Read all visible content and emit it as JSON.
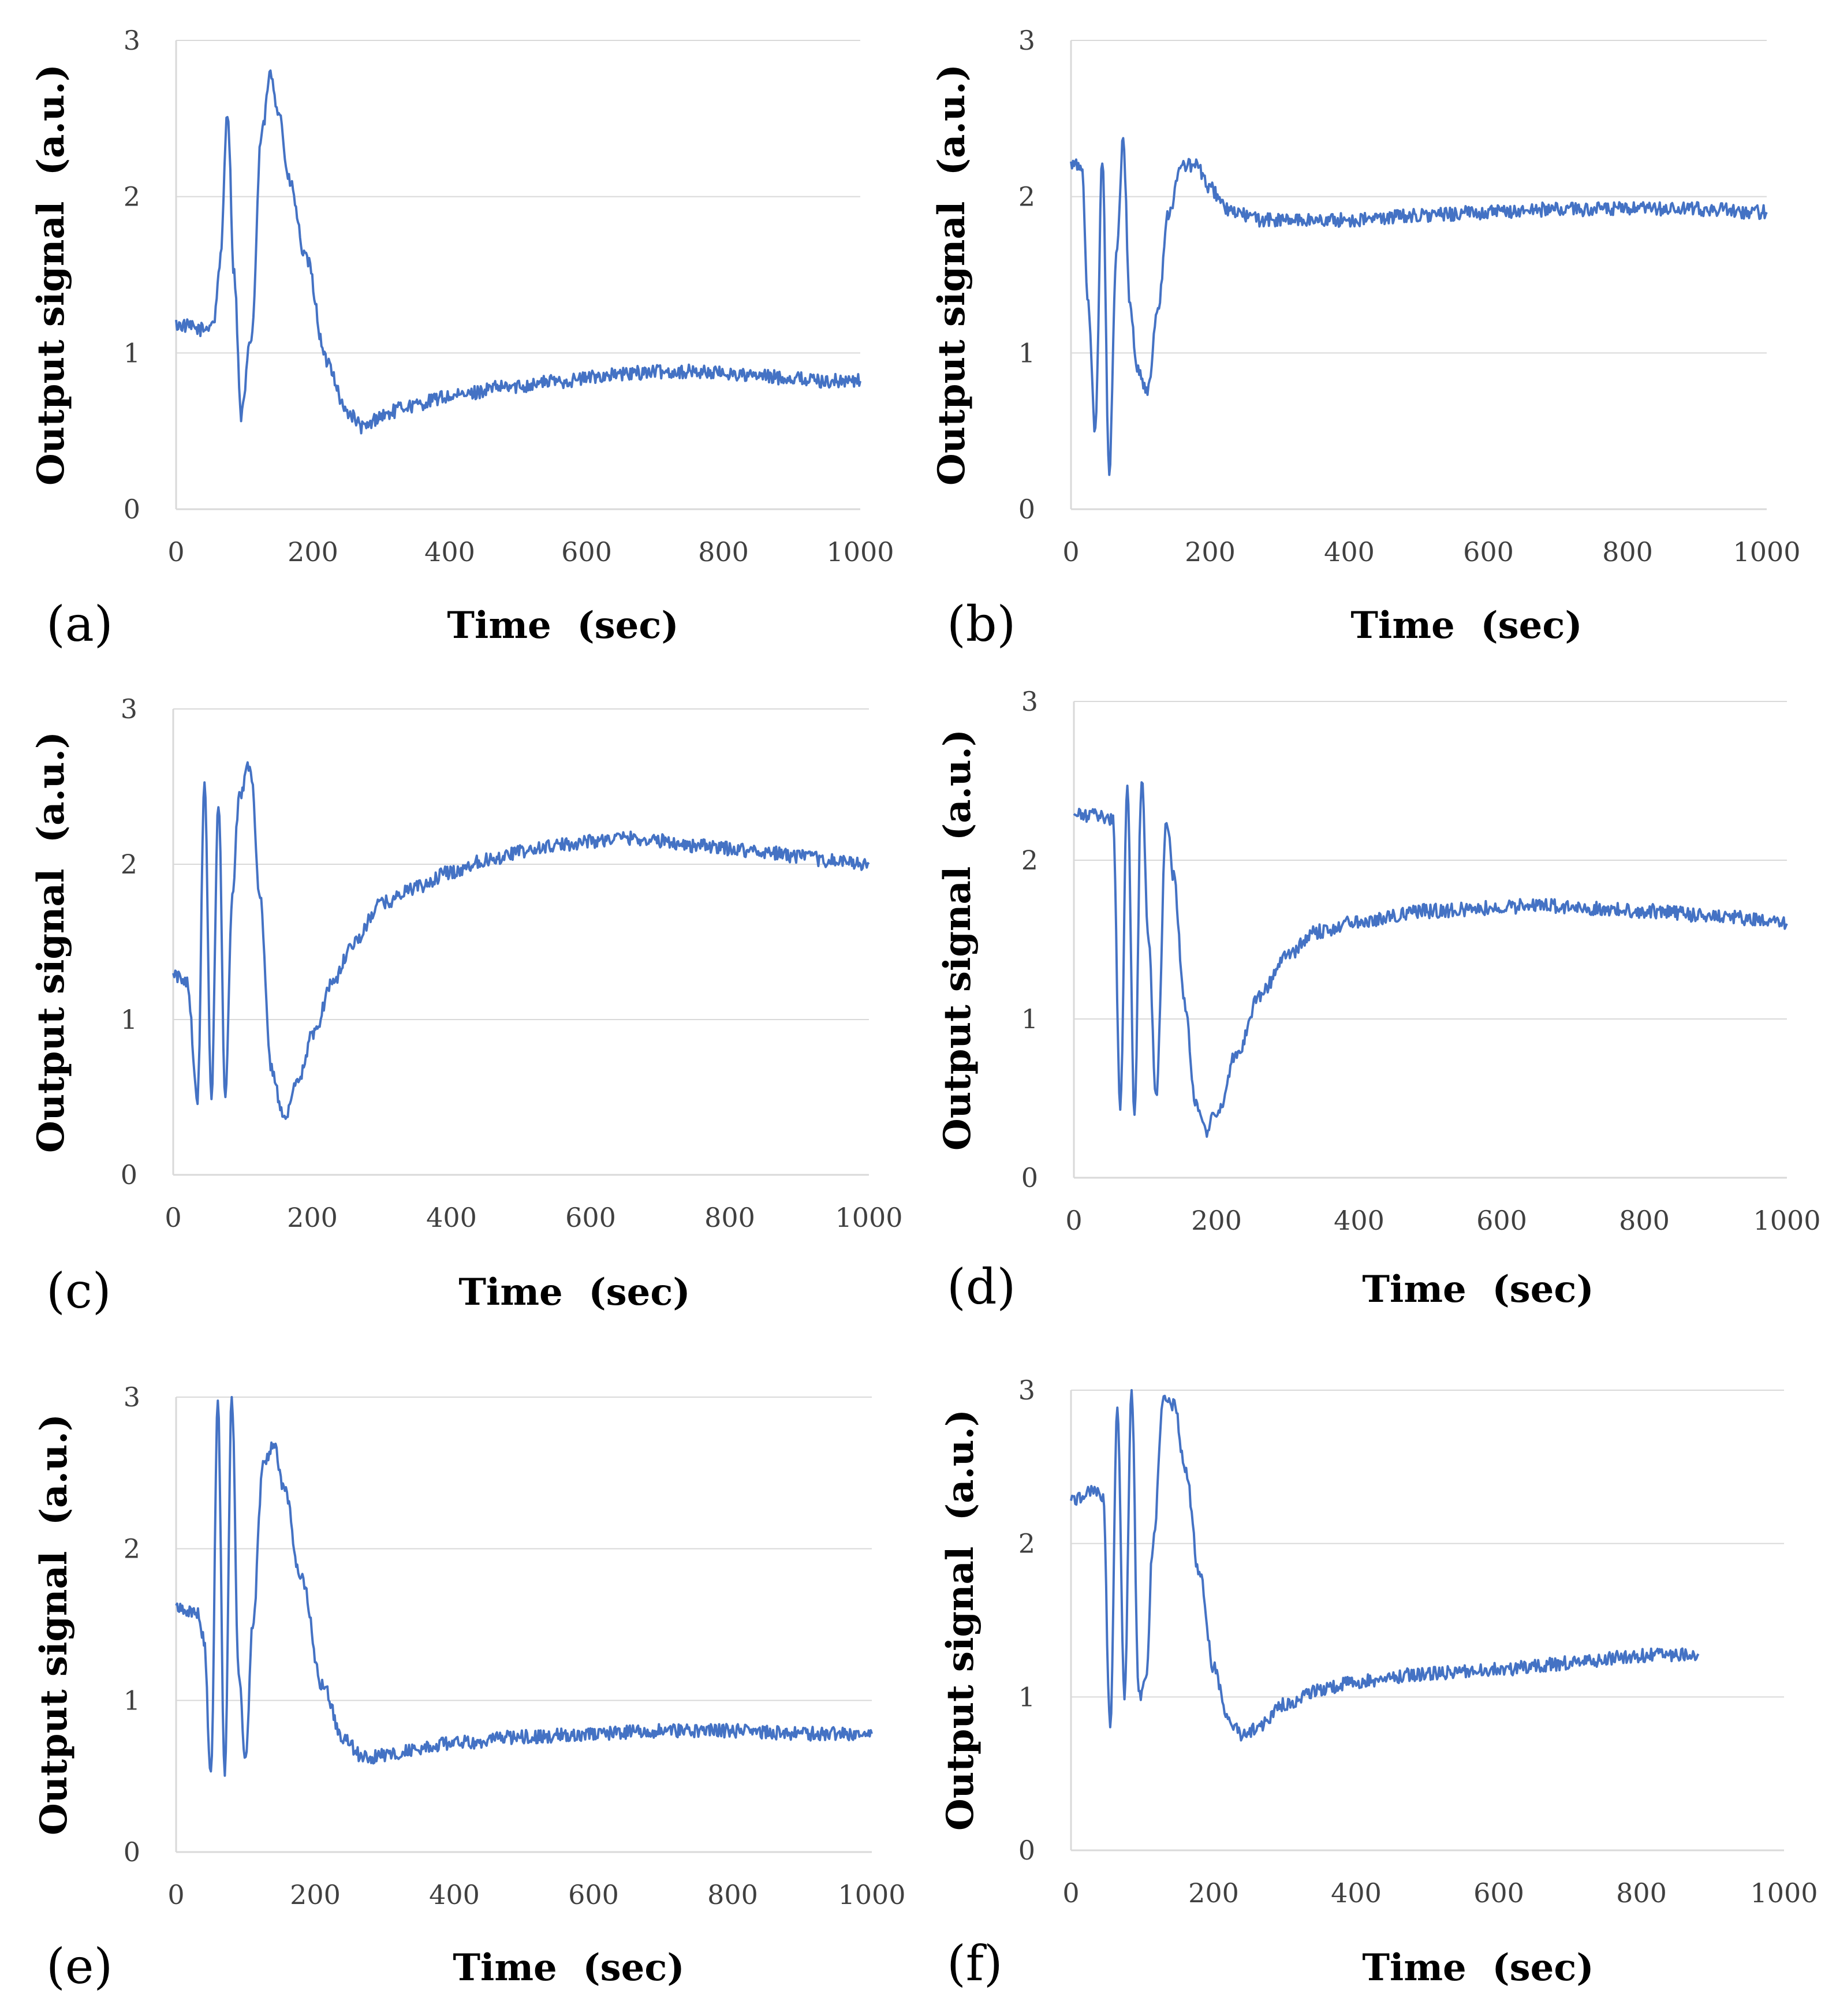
{
  "chart_data": [
    {
      "type": "line",
      "panel_label": "(a)",
      "xlabel": "Time  (sec)",
      "ylabel": "Output signal  (a.u.)",
      "xlim": [
        0,
        1000
      ],
      "ylim": [
        0,
        3
      ],
      "xticks": [
        "0",
        "200",
        "400",
        "600",
        "800",
        "1000"
      ],
      "yticks": [
        "0",
        "1",
        "2",
        "3"
      ],
      "grid": "horizontal",
      "series": [
        {
          "color": "#4472c4",
          "x": [
            0,
            40,
            55,
            65,
            75,
            85,
            95,
            110,
            125,
            138,
            150,
            165,
            190,
            220,
            250,
            275,
            300,
            340,
            400,
            480,
            560,
            640,
            700,
            760,
            800,
            850,
            900,
            950,
            1000
          ],
          "y": [
            1.18,
            1.15,
            1.2,
            1.6,
            2.55,
            1.5,
            0.6,
            1.1,
            2.4,
            2.78,
            2.55,
            2.1,
            1.6,
            0.95,
            0.62,
            0.52,
            0.6,
            0.66,
            0.72,
            0.78,
            0.82,
            0.86,
            0.88,
            0.88,
            0.87,
            0.85,
            0.84,
            0.82,
            0.82
          ]
        }
      ]
    },
    {
      "type": "line",
      "panel_label": "(b)",
      "xlabel": "Time  (sec)",
      "ylabel": "Output signal  (a.u.)",
      "xlim": [
        0,
        1000
      ],
      "ylim": [
        0,
        3
      ],
      "xticks": [
        "0",
        "200",
        "400",
        "600",
        "800",
        "1000"
      ],
      "yticks": [
        "0",
        "1",
        "2",
        "3"
      ],
      "grid": "horizontal",
      "series": [
        {
          "color": "#4472c4",
          "x": [
            0,
            15,
            25,
            35,
            45,
            55,
            65,
            75,
            85,
            95,
            110,
            125,
            140,
            160,
            180,
            200,
            230,
            280,
            400,
            500,
            600,
            700,
            800,
            900,
            1000
          ],
          "y": [
            2.2,
            2.2,
            1.3,
            0.5,
            2.25,
            0.25,
            1.6,
            2.35,
            1.3,
            0.9,
            0.75,
            1.3,
            1.9,
            2.2,
            2.2,
            2.05,
            1.9,
            1.85,
            1.85,
            1.88,
            1.9,
            1.92,
            1.92,
            1.92,
            1.9
          ]
        }
      ]
    },
    {
      "type": "line",
      "panel_label": "(c)",
      "xlabel": "Time  (sec)",
      "ylabel": "Output signal  (a.u.)",
      "xlim": [
        0,
        1000
      ],
      "ylim": [
        0,
        3
      ],
      "xticks": [
        "0",
        "200",
        "400",
        "600",
        "800",
        "1000"
      ],
      "yticks": [
        "0",
        "1",
        "2",
        "3"
      ],
      "grid": "horizontal",
      "series": [
        {
          "color": "#4472c4",
          "x": [
            0,
            20,
            35,
            45,
            55,
            65,
            75,
            85,
            95,
            110,
            125,
            140,
            160,
            180,
            200,
            230,
            260,
            300,
            350,
            400,
            450,
            500,
            550,
            600,
            650,
            700,
            750,
            800,
            850,
            900,
            950,
            1000
          ],
          "y": [
            1.28,
            1.25,
            0.5,
            2.5,
            0.5,
            2.4,
            0.5,
            1.8,
            2.45,
            2.65,
            1.8,
            0.7,
            0.35,
            0.6,
            0.9,
            1.25,
            1.5,
            1.75,
            1.85,
            1.95,
            2.03,
            2.08,
            2.12,
            2.15,
            2.17,
            2.15,
            2.12,
            2.1,
            2.08,
            2.05,
            2.02,
            2.0
          ]
        }
      ]
    },
    {
      "type": "line",
      "panel_label": "(d)",
      "xlabel": "Time  (sec)",
      "ylabel": "Output signal  (a.u.)",
      "xlim": [
        0,
        1000
      ],
      "ylim": [
        0,
        3
      ],
      "xticks": [
        "0",
        "200",
        "400",
        "600",
        "800",
        "1000"
      ],
      "yticks": [
        "0",
        "1",
        "2",
        "3"
      ],
      "grid": "horizontal",
      "series": [
        {
          "color": "#4472c4",
          "x": [
            0,
            40,
            55,
            65,
            75,
            85,
            95,
            105,
            115,
            130,
            140,
            155,
            170,
            185,
            200,
            230,
            260,
            300,
            340,
            400,
            500,
            600,
            650,
            700,
            800,
            900,
            1000
          ],
          "y": [
            2.28,
            2.28,
            2.25,
            0.45,
            2.45,
            0.4,
            2.5,
            1.5,
            0.5,
            2.25,
            1.9,
            1.1,
            0.5,
            0.3,
            0.4,
            0.8,
            1.15,
            1.4,
            1.55,
            1.62,
            1.68,
            1.7,
            1.72,
            1.7,
            1.68,
            1.65,
            1.6
          ]
        }
      ]
    },
    {
      "type": "line",
      "panel_label": "(e)",
      "xlabel": "Time  (sec)",
      "ylabel": "Output signal  (a.u.)",
      "xlim": [
        0,
        1000
      ],
      "ylim": [
        0,
        3
      ],
      "xticks": [
        "0",
        "200",
        "400",
        "600",
        "800",
        "1000"
      ],
      "yticks": [
        "0",
        "1",
        "2",
        "3"
      ],
      "grid": "horizontal",
      "series": [
        {
          "color": "#4472c4",
          "x": [
            0,
            30,
            40,
            50,
            60,
            70,
            80,
            90,
            100,
            110,
            125,
            140,
            155,
            180,
            210,
            240,
            270,
            300,
            350,
            400,
            500,
            600,
            700,
            800,
            900,
            1000
          ],
          "y": [
            1.62,
            1.58,
            1.4,
            0.5,
            2.95,
            0.5,
            3.0,
            1.2,
            0.6,
            1.5,
            2.55,
            2.7,
            2.4,
            1.8,
            1.1,
            0.75,
            0.62,
            0.64,
            0.68,
            0.72,
            0.76,
            0.78,
            0.8,
            0.8,
            0.78,
            0.78
          ]
        }
      ]
    },
    {
      "type": "line",
      "panel_label": "(f)",
      "xlabel": "Time  (sec)",
      "ylabel": "Output signal  (a.u.)",
      "xlim": [
        0,
        1000
      ],
      "ylim": [
        0,
        3
      ],
      "xticks": [
        "0",
        "200",
        "400",
        "600",
        "800",
        "1000"
      ],
      "yticks": [
        "0",
        "1",
        "2",
        "3"
      ],
      "grid": "horizontal",
      "series": [
        {
          "color": "#4472c4",
          "x": [
            0,
            30,
            45,
            55,
            65,
            75,
            85,
            95,
            105,
            115,
            130,
            145,
            160,
            180,
            200,
            220,
            240,
            260,
            300,
            350,
            400,
            500,
            600,
            700,
            800,
            880
          ],
          "y": [
            2.28,
            2.35,
            2.3,
            0.8,
            2.9,
            1.0,
            3.0,
            1.0,
            1.1,
            2.0,
            2.95,
            2.9,
            2.5,
            1.8,
            1.2,
            0.85,
            0.75,
            0.8,
            0.95,
            1.05,
            1.1,
            1.15,
            1.18,
            1.22,
            1.27,
            1.28
          ]
        }
      ]
    }
  ]
}
